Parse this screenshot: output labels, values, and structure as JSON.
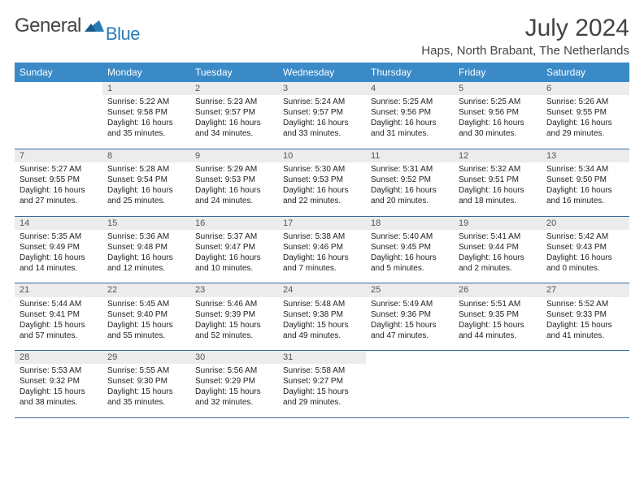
{
  "brand": {
    "name1": "General",
    "name2": "Blue"
  },
  "title": "July 2024",
  "location": "Haps, North Brabant, The Netherlands",
  "weekdays": [
    "Sunday",
    "Monday",
    "Tuesday",
    "Wednesday",
    "Thursday",
    "Friday",
    "Saturday"
  ],
  "colors": {
    "header_bg": "#3a8ac8",
    "daynum_bg": "#ececec",
    "rule": "#3a6a9a",
    "brand_blue": "#2a7ab8"
  },
  "fonts": {
    "title_size": 30,
    "location_size": 15,
    "weekday_size": 12,
    "daynum_size": 11,
    "detail_size": 10
  },
  "weeks": [
    [
      null,
      {
        "n": "1",
        "sr": "5:22 AM",
        "ss": "9:58 PM",
        "dl": "16 hours and 35 minutes."
      },
      {
        "n": "2",
        "sr": "5:23 AM",
        "ss": "9:57 PM",
        "dl": "16 hours and 34 minutes."
      },
      {
        "n": "3",
        "sr": "5:24 AM",
        "ss": "9:57 PM",
        "dl": "16 hours and 33 minutes."
      },
      {
        "n": "4",
        "sr": "5:25 AM",
        "ss": "9:56 PM",
        "dl": "16 hours and 31 minutes."
      },
      {
        "n": "5",
        "sr": "5:25 AM",
        "ss": "9:56 PM",
        "dl": "16 hours and 30 minutes."
      },
      {
        "n": "6",
        "sr": "5:26 AM",
        "ss": "9:55 PM",
        "dl": "16 hours and 29 minutes."
      }
    ],
    [
      {
        "n": "7",
        "sr": "5:27 AM",
        "ss": "9:55 PM",
        "dl": "16 hours and 27 minutes."
      },
      {
        "n": "8",
        "sr": "5:28 AM",
        "ss": "9:54 PM",
        "dl": "16 hours and 25 minutes."
      },
      {
        "n": "9",
        "sr": "5:29 AM",
        "ss": "9:53 PM",
        "dl": "16 hours and 24 minutes."
      },
      {
        "n": "10",
        "sr": "5:30 AM",
        "ss": "9:53 PM",
        "dl": "16 hours and 22 minutes."
      },
      {
        "n": "11",
        "sr": "5:31 AM",
        "ss": "9:52 PM",
        "dl": "16 hours and 20 minutes."
      },
      {
        "n": "12",
        "sr": "5:32 AM",
        "ss": "9:51 PM",
        "dl": "16 hours and 18 minutes."
      },
      {
        "n": "13",
        "sr": "5:34 AM",
        "ss": "9:50 PM",
        "dl": "16 hours and 16 minutes."
      }
    ],
    [
      {
        "n": "14",
        "sr": "5:35 AM",
        "ss": "9:49 PM",
        "dl": "16 hours and 14 minutes."
      },
      {
        "n": "15",
        "sr": "5:36 AM",
        "ss": "9:48 PM",
        "dl": "16 hours and 12 minutes."
      },
      {
        "n": "16",
        "sr": "5:37 AM",
        "ss": "9:47 PM",
        "dl": "16 hours and 10 minutes."
      },
      {
        "n": "17",
        "sr": "5:38 AM",
        "ss": "9:46 PM",
        "dl": "16 hours and 7 minutes."
      },
      {
        "n": "18",
        "sr": "5:40 AM",
        "ss": "9:45 PM",
        "dl": "16 hours and 5 minutes."
      },
      {
        "n": "19",
        "sr": "5:41 AM",
        "ss": "9:44 PM",
        "dl": "16 hours and 2 minutes."
      },
      {
        "n": "20",
        "sr": "5:42 AM",
        "ss": "9:43 PM",
        "dl": "16 hours and 0 minutes."
      }
    ],
    [
      {
        "n": "21",
        "sr": "5:44 AM",
        "ss": "9:41 PM",
        "dl": "15 hours and 57 minutes."
      },
      {
        "n": "22",
        "sr": "5:45 AM",
        "ss": "9:40 PM",
        "dl": "15 hours and 55 minutes."
      },
      {
        "n": "23",
        "sr": "5:46 AM",
        "ss": "9:39 PM",
        "dl": "15 hours and 52 minutes."
      },
      {
        "n": "24",
        "sr": "5:48 AM",
        "ss": "9:38 PM",
        "dl": "15 hours and 49 minutes."
      },
      {
        "n": "25",
        "sr": "5:49 AM",
        "ss": "9:36 PM",
        "dl": "15 hours and 47 minutes."
      },
      {
        "n": "26",
        "sr": "5:51 AM",
        "ss": "9:35 PM",
        "dl": "15 hours and 44 minutes."
      },
      {
        "n": "27",
        "sr": "5:52 AM",
        "ss": "9:33 PM",
        "dl": "15 hours and 41 minutes."
      }
    ],
    [
      {
        "n": "28",
        "sr": "5:53 AM",
        "ss": "9:32 PM",
        "dl": "15 hours and 38 minutes."
      },
      {
        "n": "29",
        "sr": "5:55 AM",
        "ss": "9:30 PM",
        "dl": "15 hours and 35 minutes."
      },
      {
        "n": "30",
        "sr": "5:56 AM",
        "ss": "9:29 PM",
        "dl": "15 hours and 32 minutes."
      },
      {
        "n": "31",
        "sr": "5:58 AM",
        "ss": "9:27 PM",
        "dl": "15 hours and 29 minutes."
      },
      null,
      null,
      null
    ]
  ],
  "labels": {
    "sunrise": "Sunrise:",
    "sunset": "Sunset:",
    "daylight": "Daylight:"
  }
}
